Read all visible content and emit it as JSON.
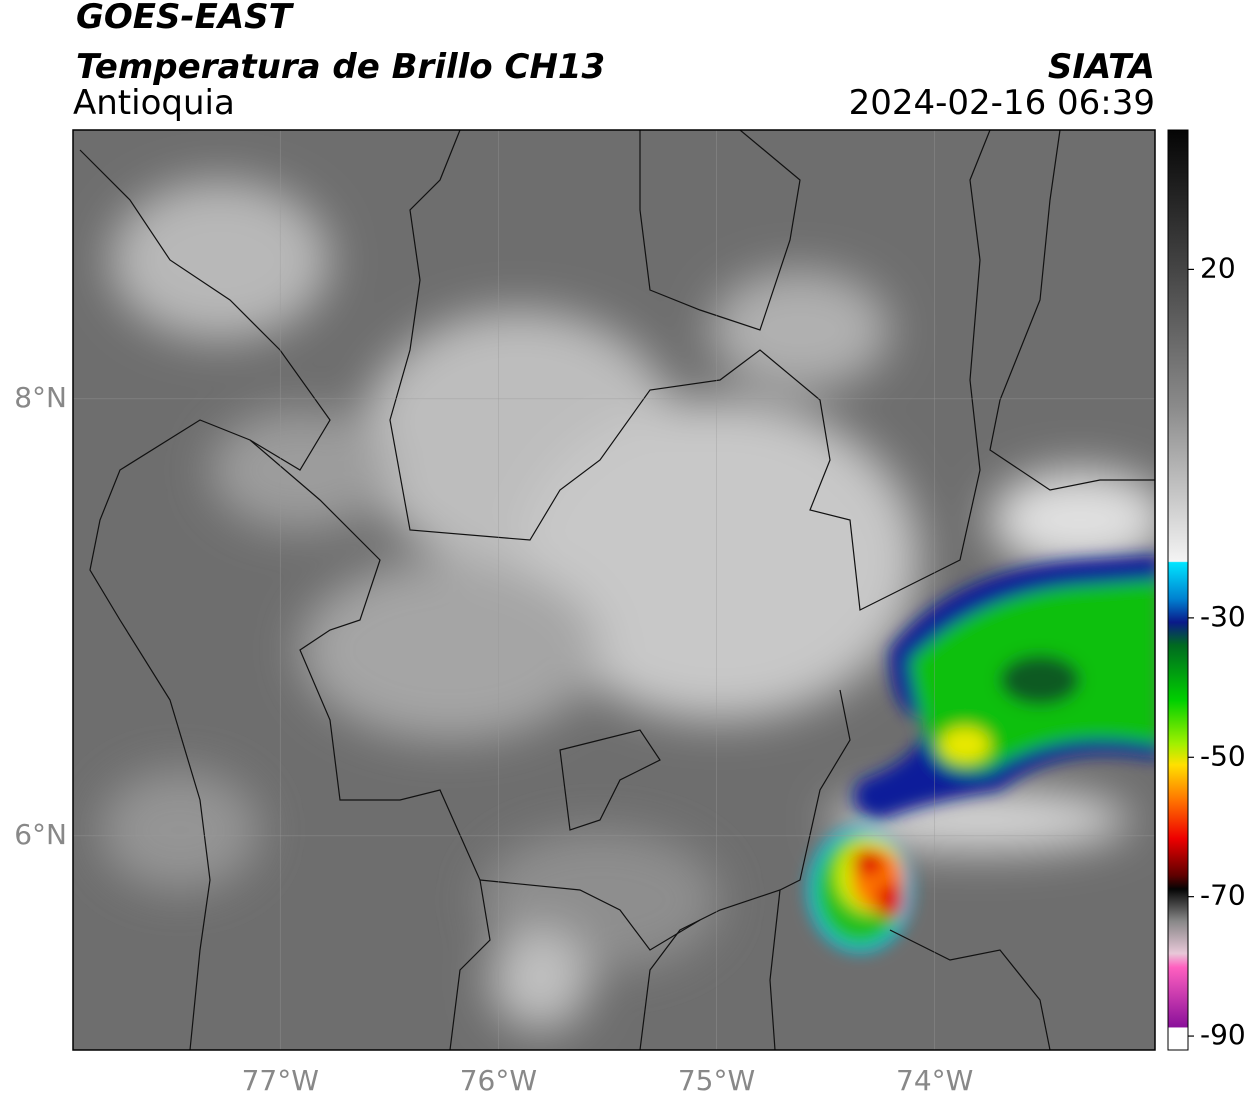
{
  "header": {
    "title": "GOES-EAST",
    "subtitle": "Temperatura de Brillo CH13",
    "region": "Antioquia",
    "source": "SIATA",
    "datetime": "2024-02-16 06:39"
  },
  "map": {
    "xlim": [
      -77.95,
      -72.99
    ],
    "ylim": [
      5.02,
      9.23
    ],
    "xticks": [
      {
        "value": -77,
        "label": "77°W"
      },
      {
        "value": -76,
        "label": "76°W"
      },
      {
        "value": -75,
        "label": "75°W"
      },
      {
        "value": -74,
        "label": "74°W"
      }
    ],
    "yticks": [
      {
        "value": 8,
        "label": "8°N"
      },
      {
        "value": 6,
        "label": "6°N"
      }
    ]
  },
  "colorbar": {
    "lim": [
      -92,
      40
    ],
    "ticks": [
      20,
      -30,
      -50,
      -70,
      -90
    ]
  }
}
